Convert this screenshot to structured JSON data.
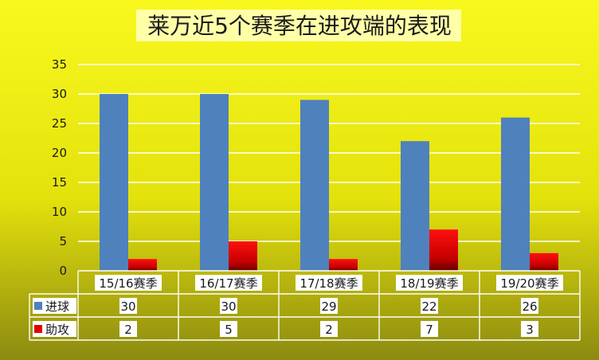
{
  "chart_data": {
    "type": "bar",
    "title": "莱万近5个赛季在进攻端的表现",
    "categories": [
      "15/16赛季",
      "16/17赛季",
      "17/18赛季",
      "18/19赛季",
      "19/20赛季"
    ],
    "series": [
      {
        "name": "进球",
        "values": [
          30,
          30,
          29,
          22,
          26
        ],
        "color": "#4F81BD"
      },
      {
        "name": "助攻",
        "values": [
          2,
          5,
          2,
          7,
          3
        ],
        "color": "#E00000"
      }
    ],
    "ylim": [
      0,
      35
    ],
    "yticks": [
      0,
      5,
      10,
      15,
      20,
      25,
      30,
      35
    ],
    "grid": true,
    "legend": "data-table",
    "data_table": true
  },
  "colors": {
    "background_top": "#F8F81E",
    "background_bottom": "#8C8A10",
    "title_box": "#FFFFA8"
  }
}
